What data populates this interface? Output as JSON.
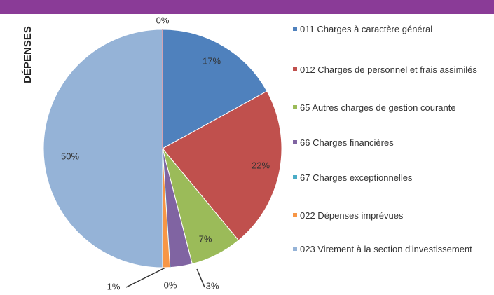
{
  "chart_data": {
    "type": "pie",
    "title": "DÉPENSES",
    "categories": [
      "011 Charges à caractère général",
      "012 Charges de personnel et frais assimilés",
      "65 Autres charges de gestion courante",
      "66 Charges financières",
      "67 Charges exceptionnelles",
      "022 Dépenses imprévues",
      "023 Virement à la section d'investissement",
      null
    ],
    "values": [
      17,
      22,
      7,
      3,
      0,
      1,
      50,
      0
    ],
    "value_labels": [
      "17%",
      "22%",
      "7%",
      "3%",
      "0%",
      "1%",
      "50%",
      "0%"
    ],
    "colors": [
      "#4f81bd",
      "#c0504d",
      "#9bbb59",
      "#8064a2",
      "#4bacc6",
      "#f79646",
      "#95b3d7",
      "#e6a0a8"
    ]
  }
}
